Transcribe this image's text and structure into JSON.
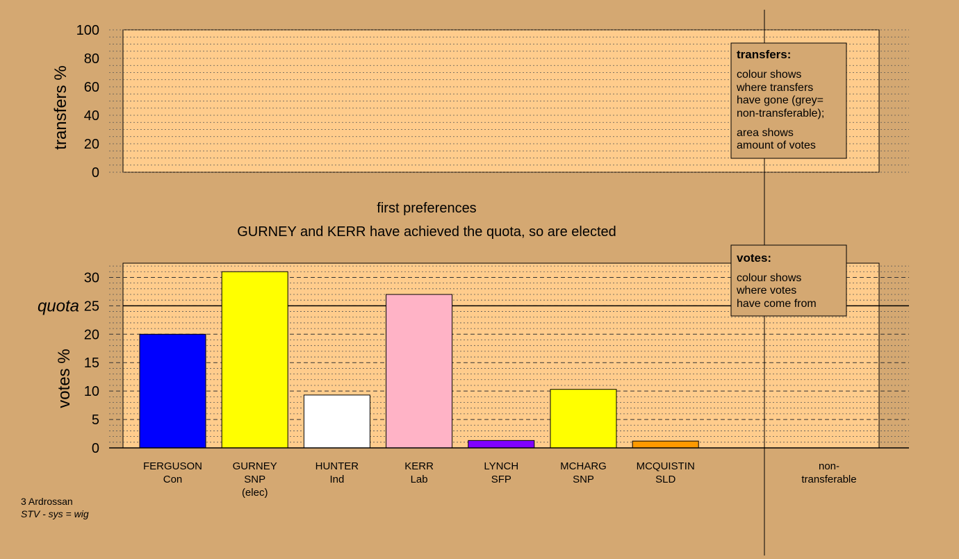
{
  "top_chart": {
    "ylabel": "transfers %",
    "yticks": [
      "0",
      "20",
      "40",
      "60",
      "80",
      "100"
    ],
    "ylim": [
      0,
      100
    ],
    "legend": {
      "title": "transfers:",
      "lines": [
        "colour shows",
        "where transfers",
        "have gone (grey=",
        "non-transferable);"
      ],
      "lines2": [
        "area shows",
        "amount of votes"
      ]
    }
  },
  "headings": {
    "stage": "first preferences",
    "status": "GURNEY and KERR have achieved the quota, so are elected"
  },
  "bottom_legend": {
    "title": "votes:",
    "lines": [
      "colour shows",
      "where votes",
      "have come from"
    ]
  },
  "footer": {
    "line1": "3 Ardrossan",
    "line2": "STV - sys = wig"
  },
  "chart_data": {
    "type": "bar",
    "ylabel": "votes %",
    "ylim": [
      0,
      32.5
    ],
    "yticks": [
      "0",
      "5",
      "10",
      "15",
      "20",
      "25",
      "30"
    ],
    "quota": {
      "label": "quota",
      "value": 25
    },
    "categories": [
      {
        "name": "FERGUSON",
        "party": "Con",
        "note": "",
        "value": 20.0,
        "color": "#0000ff"
      },
      {
        "name": "GURNEY",
        "party": "SNP",
        "note": "(elec)",
        "value": 31.0,
        "color": "#ffff00"
      },
      {
        "name": "HUNTER",
        "party": "Ind",
        "note": "",
        "value": 9.3,
        "color": "#ffffff"
      },
      {
        "name": "KERR",
        "party": "Lab",
        "note": "",
        "value": 27.0,
        "color": "#ffb3c6"
      },
      {
        "name": "LYNCH",
        "party": "SFP",
        "note": "",
        "value": 1.3,
        "color": "#8000ff"
      },
      {
        "name": "MCHARG",
        "party": "SNP",
        "note": "",
        "value": 10.3,
        "color": "#ffff00"
      },
      {
        "name": "MCQUISTIN",
        "party": "SLD",
        "note": "",
        "value": 1.2,
        "color": "#ff9900"
      }
    ],
    "nontransferable": {
      "line1": "non-",
      "line2": "transferable"
    }
  }
}
